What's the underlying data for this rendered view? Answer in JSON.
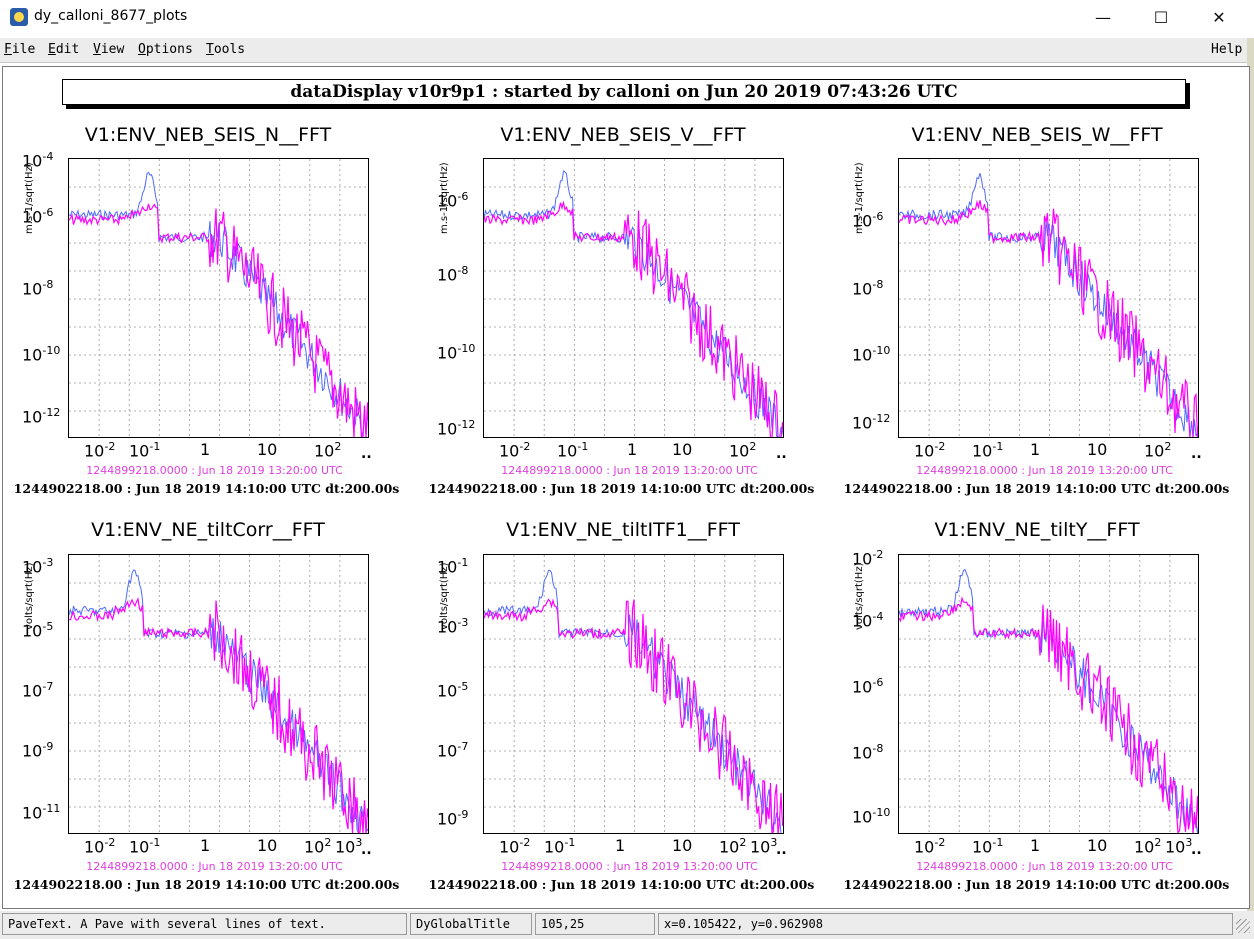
{
  "window": {
    "title": "dy_calloni_8677_plots",
    "minimize_glyph": "—",
    "maximize_glyph": "☐",
    "close_glyph": "✕"
  },
  "menu": {
    "items": [
      {
        "u": "F",
        "rest": "ile"
      },
      {
        "u": "E",
        "rest": "dit"
      },
      {
        "u": "V",
        "rest": "iew"
      },
      {
        "u": "O",
        "rest": "ptions"
      },
      {
        "u": "T",
        "rest": "ools"
      }
    ],
    "help": {
      "u": "",
      "rest": "Help"
    }
  },
  "global_title": "dataDisplay v10r9p1 : started by calloni on Jun 20 2019 07:43:26 UTC",
  "stamps": {
    "reference": "1244899218.0000 : Jun 18 2019 13:20:00 UTC",
    "current": "1244902218.00 : Jun 18 2019 14:10:00 UTC dt:200.00s"
  },
  "plots": [
    {
      "title": "V1:ENV_NEB_SEIS_N__FFT",
      "ylabel": "m.s-1/sqrt(Hz)",
      "xticks": [
        "10-2",
        "10-1",
        "1",
        "10",
        "102"
      ],
      "yticks": [
        "10-4",
        "10-6",
        "10-8",
        "10-10",
        "10-12"
      ]
    },
    {
      "title": "V1:ENV_NEB_SEIS_V__FFT",
      "ylabel": "m.s-1/sqrt(Hz)",
      "xticks": [
        "10-2",
        "10-1",
        "1",
        "10",
        "102"
      ],
      "yticks": [
        "10-6",
        "10-8",
        "10-10",
        "10-12"
      ]
    },
    {
      "title": "V1:ENV_NEB_SEIS_W__FFT",
      "ylabel": "m.s-1/sqrt(Hz)",
      "xticks": [
        "10-2",
        "10-1",
        "1",
        "10",
        "102"
      ],
      "yticks": [
        "10-6",
        "10-8",
        "10-10",
        "10-12"
      ]
    },
    {
      "title": "V1:ENV_NE_tiltCorr__FFT",
      "ylabel": "volts/sqrt(Hz)",
      "xticks": [
        "10-2",
        "10-1",
        "1",
        "10",
        "102",
        "103"
      ],
      "yticks": [
        "10-3",
        "10-5",
        "10-7",
        "10-9",
        "10-11"
      ]
    },
    {
      "title": "V1:ENV_NE_tiltITF1__FFT",
      "ylabel": "volts/sqrt(Hz)",
      "xticks": [
        "10-2",
        "10-1",
        "1",
        "10",
        "102",
        "103"
      ],
      "yticks": [
        "10-1",
        "10-3",
        "10-5",
        "10-7",
        "10-9"
      ]
    },
    {
      "title": "V1:ENV_NE_tiltY__FFT",
      "ylabel": "volts/sqrt(Hz)",
      "xticks": [
        "10-2",
        "10-1",
        "1",
        "10",
        "102",
        "103"
      ],
      "yticks": [
        "10-2",
        "10-4",
        "10-6",
        "10-8",
        "10-10"
      ]
    }
  ],
  "colors": {
    "reference_trace": "#ff00ff",
    "current_trace": "#4f6bff",
    "grid": "#9a9a9a"
  },
  "status": {
    "object_info": "PaveText. A Pave with several lines of text.",
    "object_name": "DyGlobalTitle",
    "pixel": "105,25",
    "coords": "x=0.105422, y=0.962908"
  }
}
